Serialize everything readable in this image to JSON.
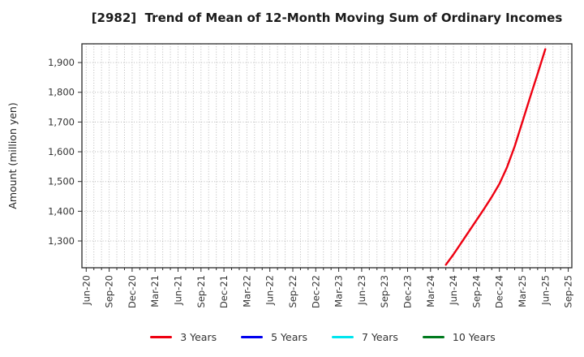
{
  "header": {
    "title": "[2982]  Trend of Mean of 12-Month Moving Sum of Ordinary Incomes"
  },
  "chart_data": {
    "type": "line",
    "title": "[2982]  Trend of Mean of 12-Month Moving Sum of Ordinary Incomes",
    "xlabel": "",
    "ylabel": "Amount (million yen)",
    "ylim": [
      1210,
      1963
    ],
    "yticks": [
      1300,
      1400,
      1500,
      1600,
      1700,
      1800,
      1900
    ],
    "ytick_labels": [
      "1,300",
      "1,400",
      "1,500",
      "1,600",
      "1,700",
      "1,800",
      "1,900"
    ],
    "x_tick_labels": [
      "Jun-20",
      "Sep-20",
      "Dec-20",
      "Mar-21",
      "Jun-21",
      "Sep-21",
      "Dec-21",
      "Mar-22",
      "Jun-22",
      "Sep-22",
      "Dec-22",
      "Mar-23",
      "Jun-23",
      "Sep-23",
      "Dec-23",
      "Mar-24",
      "Jun-24",
      "Sep-24",
      "Dec-24",
      "Mar-25",
      "Jun-25",
      "Sep-25"
    ],
    "x_axis_start_month": "Jun-20",
    "x_axis_end_month": "Sep-25",
    "grid": true,
    "grid_style": "dotted",
    "legend_position": "bottom-center",
    "series": [
      {
        "name": "3 Years",
        "color": "#ee0011",
        "x": [
          "May-24",
          "Jun-24",
          "Jul-24",
          "Aug-24",
          "Sep-24",
          "Oct-24",
          "Nov-24",
          "Dec-24",
          "Jan-25",
          "Feb-25",
          "Mar-25",
          "Apr-25",
          "May-25",
          "Jun-25"
        ],
        "values": [
          1220,
          1255,
          1293,
          1331,
          1370,
          1408,
          1448,
          1492,
          1548,
          1618,
          1700,
          1782,
          1862,
          1945
        ]
      },
      {
        "name": "5 Years",
        "color": "#0000ee",
        "x": [],
        "values": []
      },
      {
        "name": "7 Years",
        "color": "#00e5ee",
        "x": [],
        "values": []
      },
      {
        "name": "10 Years",
        "color": "#007a1e",
        "x": [],
        "values": []
      }
    ]
  }
}
